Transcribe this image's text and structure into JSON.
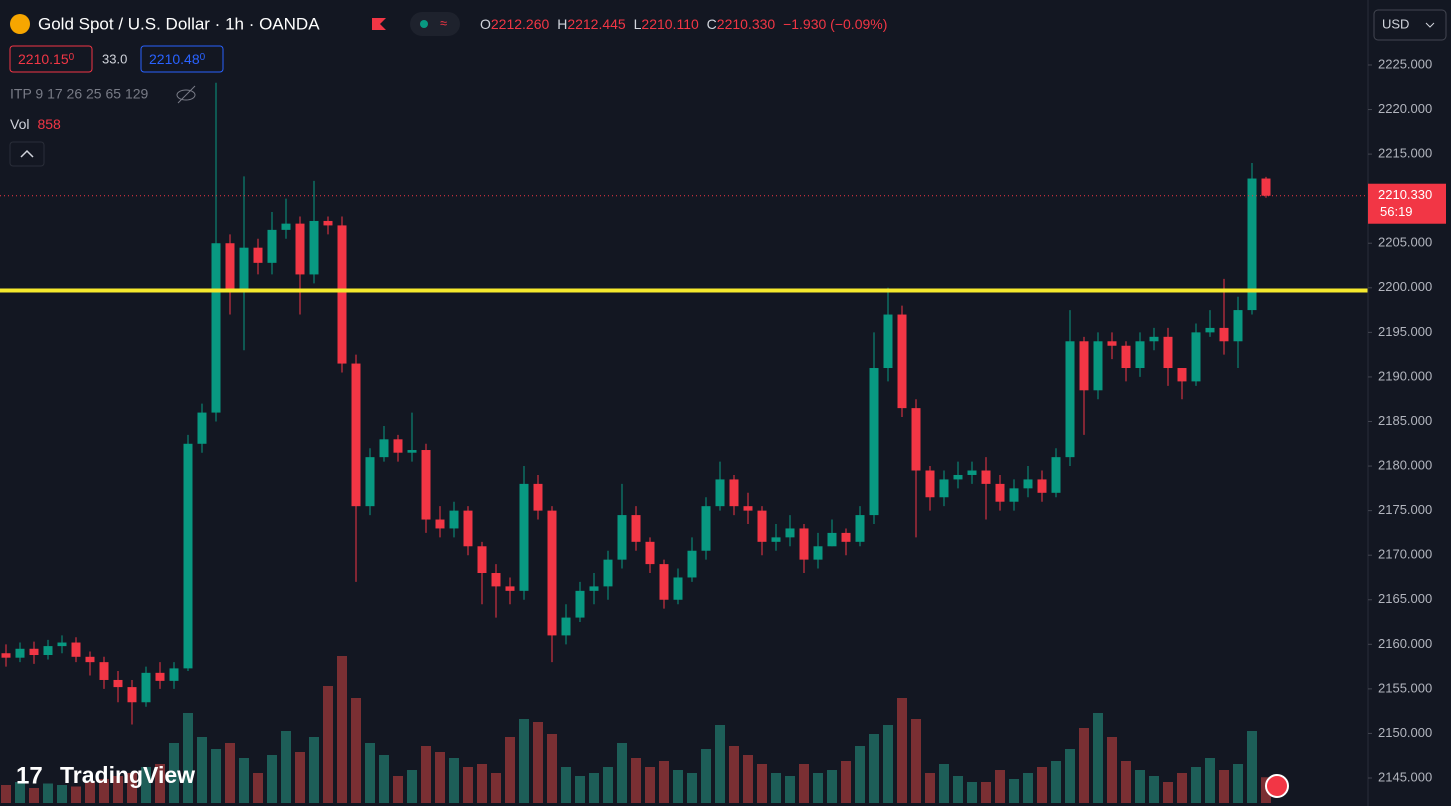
{
  "header": {
    "symbol": "Gold Spot / U.S. Dollar · 1h · OANDA",
    "open_label": "O",
    "open": "2212.260",
    "high_label": "H",
    "high": "2212.445",
    "low_label": "L",
    "low": "2210.110",
    "close_label": "C",
    "close": "2210.330",
    "change": "−1.930 (−0.09%)",
    "bid": "2210.15",
    "bid_pip": "0",
    "spread": "33.0",
    "ask": "2210.48",
    "ask_pip": "0",
    "indicator": "ITP 9 17 26 25 65 129",
    "volume_label": "Vol",
    "price_tag": "2210.330",
    "countdown": "56:19",
    "currency": "USD",
    "logo": "TradingView"
  },
  "chart_data": {
    "type": "candlestick",
    "open": [
      2159.0,
      2158.5,
      2159.5,
      2158.8,
      2159.8,
      2160.2,
      2158.6,
      2158.0,
      2156.0,
      2155.2,
      2153.5,
      2156.8,
      2155.9,
      2157.3,
      2182.5,
      2186.0,
      2205.0,
      2199.5,
      2204.5,
      2202.8,
      2206.5,
      2207.2,
      2201.5,
      2207.5,
      2207.0,
      2191.5,
      2175.5,
      2181.0,
      2183.0,
      2181.5,
      2181.8,
      2174.0,
      2173.0,
      2175.0,
      2171.0,
      2168.0,
      2166.5,
      2166.0,
      2178.0,
      2175.0,
      2161.0,
      2163.0,
      2166.0,
      2166.5,
      2169.5,
      2174.5,
      2171.5,
      2169.0,
      2165.0,
      2167.5,
      2170.5,
      2175.5,
      2178.5,
      2175.5,
      2175.0,
      2171.5,
      2172.0,
      2173.0,
      2169.5,
      2171.0,
      2172.5,
      2171.5,
      2174.5,
      2191.0,
      2197.0,
      2186.5,
      2179.5,
      2176.5,
      2178.5,
      2179.0,
      2179.5,
      2178.0,
      2176.0,
      2177.5,
      2178.5,
      2177.0,
      2181.0,
      2194.0,
      2188.5,
      2194.0,
      2193.5,
      2191.0,
      2194.0,
      2194.5,
      2191.0,
      2189.5,
      2195.0,
      2195.5,
      2194.0,
      2197.5,
      2212.26
    ],
    "high": [
      2160.0,
      2160.2,
      2160.3,
      2160.5,
      2161.0,
      2160.8,
      2159.2,
      2158.6,
      2157.0,
      2156.0,
      2157.5,
      2158.0,
      2158.0,
      2183.5,
      2187.0,
      2223.0,
      2206.0,
      2212.5,
      2205.5,
      2208.5,
      2210.0,
      2208.0,
      2212.0,
      2208.0,
      2208.0,
      2192.5,
      2182.0,
      2184.5,
      2183.5,
      2186.0,
      2182.5,
      2175.5,
      2176.0,
      2175.5,
      2171.5,
      2169.0,
      2167.5,
      2180.0,
      2179.0,
      2175.5,
      2164.5,
      2167.0,
      2168.0,
      2170.5,
      2178.0,
      2175.5,
      2172.0,
      2169.5,
      2168.5,
      2172.0,
      2176.5,
      2180.5,
      2179.0,
      2177.0,
      2175.5,
      2173.5,
      2174.5,
      2173.5,
      2172.5,
      2174.0,
      2173.0,
      2175.5,
      2195.0,
      2200.0,
      2198.0,
      2187.5,
      2180.0,
      2179.5,
      2180.5,
      2180.5,
      2181.0,
      2179.0,
      2178.5,
      2180.0,
      2179.5,
      2182.0,
      2197.5,
      2194.5,
      2195.0,
      2195.0,
      2194.0,
      2195.0,
      2195.5,
      2195.5,
      2191.0,
      2196.0,
      2197.5,
      2201.0,
      2199.0,
      2214.0,
      2212.445
    ],
    "low": [
      2157.5,
      2158.0,
      2157.8,
      2158.3,
      2159.0,
      2158.0,
      2156.5,
      2155.0,
      2153.5,
      2151.0,
      2153.0,
      2155.0,
      2155.0,
      2157.0,
      2181.5,
      2185.0,
      2197.0,
      2193.0,
      2201.5,
      2201.5,
      2205.5,
      2197.0,
      2200.5,
      2206.0,
      2190.5,
      2167.0,
      2174.5,
      2180.5,
      2180.5,
      2180.5,
      2172.5,
      2172.0,
      2172.0,
      2170.0,
      2164.5,
      2163.0,
      2164.5,
      2165.0,
      2174.0,
      2158.0,
      2160.0,
      2162.5,
      2164.5,
      2165.0,
      2168.5,
      2170.5,
      2168.0,
      2164.0,
      2164.5,
      2167.0,
      2169.5,
      2175.0,
      2174.5,
      2173.5,
      2170.0,
      2170.5,
      2171.0,
      2168.0,
      2168.5,
      2171.0,
      2170.0,
      2171.0,
      2173.5,
      2189.5,
      2185.5,
      2172.0,
      2175.0,
      2175.5,
      2177.5,
      2178.0,
      2174.0,
      2175.0,
      2175.0,
      2176.5,
      2176.0,
      2176.5,
      2180.0,
      2183.5,
      2187.5,
      2192.0,
      2189.5,
      2190.0,
      2193.0,
      2189.0,
      2187.5,
      2189.0,
      2194.5,
      2192.5,
      2191.0,
      2197.0,
      2210.11
    ],
    "close": [
      2158.5,
      2159.5,
      2158.8,
      2159.8,
      2160.2,
      2158.6,
      2158.0,
      2156.0,
      2155.2,
      2153.5,
      2156.8,
      2155.9,
      2157.3,
      2182.5,
      2186.0,
      2205.0,
      2199.5,
      2204.5,
      2202.8,
      2206.5,
      2207.2,
      2201.5,
      2207.5,
      2207.0,
      2191.5,
      2175.5,
      2181.0,
      2183.0,
      2181.5,
      2181.8,
      2174.0,
      2173.0,
      2175.0,
      2171.0,
      2168.0,
      2166.5,
      2166.0,
      2178.0,
      2175.0,
      2161.0,
      2163.0,
      2166.0,
      2166.5,
      2169.5,
      2174.5,
      2171.5,
      2169.0,
      2165.0,
      2167.5,
      2170.5,
      2175.5,
      2178.5,
      2175.5,
      2175.0,
      2171.5,
      2172.0,
      2173.0,
      2169.5,
      2171.0,
      2172.5,
      2171.5,
      2174.5,
      2191.0,
      2197.0,
      2186.5,
      2179.5,
      2176.5,
      2178.5,
      2179.0,
      2179.5,
      2178.0,
      2176.0,
      2177.5,
      2178.5,
      2177.0,
      2181.0,
      2194.0,
      2188.5,
      2194.0,
      2193.5,
      2191.0,
      2194.0,
      2194.5,
      2191.0,
      2189.5,
      2195.0,
      2195.5,
      2194.0,
      2197.5,
      2212.26,
      2210.33
    ],
    "volume": [
      600,
      700,
      500,
      650,
      600,
      550,
      700,
      800,
      900,
      1000,
      1200,
      1300,
      2000,
      3000,
      2200,
      1800,
      2000,
      1500,
      1000,
      1600,
      2400,
      1700,
      2200,
      3900,
      4900,
      3500,
      2000,
      1600,
      900,
      1100,
      1900,
      1700,
      1500,
      1200,
      1300,
      1000,
      2200,
      2800,
      2700,
      2300,
      1200,
      900,
      1000,
      1200,
      2000,
      1500,
      1200,
      1400,
      1100,
      1000,
      1800,
      2600,
      1900,
      1600,
      1300,
      1000,
      900,
      1300,
      1000,
      1100,
      1400,
      1900,
      2300,
      2600,
      3500,
      2800,
      1000,
      1300,
      900,
      700,
      700,
      1100,
      800,
      1000,
      1200,
      1400,
      1800,
      2500,
      3000,
      2200,
      1400,
      1100,
      900,
      700,
      1000,
      1200,
      1500,
      1100,
      1300,
      2400,
      858
    ],
    "ylim": [
      2141.86,
      2232.29
    ],
    "yticks": [
      {
        "value": 2145,
        "label": "2145.000"
      },
      {
        "value": 2150,
        "label": "2150.000"
      },
      {
        "value": 2155,
        "label": "2155.000"
      },
      {
        "value": 2160,
        "label": "2160.000"
      },
      {
        "value": 2165,
        "label": "2165.000"
      },
      {
        "value": 2170,
        "label": "2170.000"
      },
      {
        "value": 2175,
        "label": "2175.000"
      },
      {
        "value": 2180,
        "label": "2180.000"
      },
      {
        "value": 2185,
        "label": "2185.000"
      },
      {
        "value": 2190,
        "label": "2190.000"
      },
      {
        "value": 2195,
        "label": "2195.000"
      },
      {
        "value": 2200,
        "label": "2200.000"
      },
      {
        "value": 2205,
        "label": "2205.000"
      },
      {
        "value": 2210,
        "label": "2210.000"
      },
      {
        "value": 2215,
        "label": "2215.000"
      },
      {
        "value": 2220,
        "label": "2220.000"
      },
      {
        "value": 2225,
        "label": "2225.000"
      }
    ],
    "volume_lim": [
      0,
      6000
    ],
    "hline": {
      "value": 2199.7,
      "color": "#f5e92d"
    },
    "up_color": "#089981",
    "down_color": "#f23645",
    "volume_up_color": "#1d5e58",
    "volume_down_color": "#7a2f33"
  }
}
